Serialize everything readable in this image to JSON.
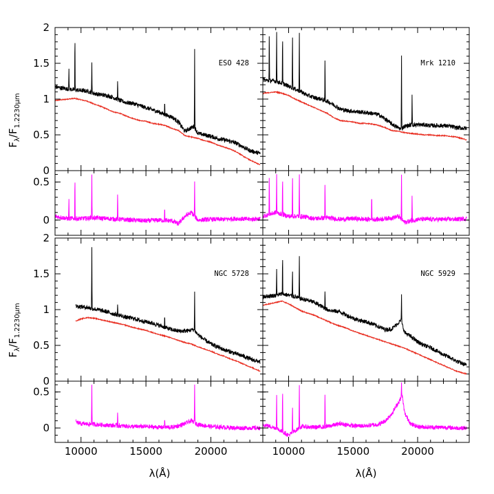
{
  "chart_data": {
    "type": "line",
    "layout": "2x2 galaxies; each galaxy has a spectrum panel and a residual panel below",
    "x_label": "λ(Å)",
    "y_label_main": "F_λ/F_1.2230μm",
    "y_label_main_parts": {
      "base": "F",
      "sub1": "λ",
      "slash": "/F",
      "sub2": "1.2230μm"
    },
    "x_range": [
      8000,
      24000
    ],
    "x_ticks": [
      10000,
      15000,
      20000
    ],
    "x_tick_labels": [
      "10000",
      "15000",
      "20000"
    ],
    "y_range_main": [
      0,
      2
    ],
    "y_ticks_main": [
      0,
      0.5,
      1,
      1.5,
      2
    ],
    "y_tick_labels_main": [
      "0",
      "0.5",
      "1",
      "1.5",
      "2"
    ],
    "y_range_residual": [
      -0.2,
      0.65
    ],
    "y_ticks_residual": [
      0,
      0.5
    ],
    "y_tick_labels_residual": [
      "0",
      "0.5"
    ],
    "colors": {
      "observed": "#000000",
      "model": "#e8291c",
      "residual": "#ff00ff"
    },
    "panels": [
      {
        "name": "ESO 428",
        "observed": {
          "x": [
            8000,
            9000,
            9500,
            10000,
            10500,
            11000,
            11500,
            12000,
            12500,
            13000,
            13500,
            14000,
            14500,
            15000,
            15500,
            16000,
            16500,
            17000,
            17500,
            18000,
            18700,
            19000,
            19500,
            20000,
            20500,
            21000,
            21500,
            22000,
            22500,
            23000,
            23800
          ],
          "y": [
            1.17,
            1.14,
            1.13,
            1.12,
            1.11,
            1.08,
            1.06,
            1.05,
            1.02,
            0.98,
            0.95,
            0.94,
            0.91,
            0.88,
            0.85,
            0.82,
            0.78,
            0.75,
            0.68,
            0.55,
            0.62,
            0.52,
            0.5,
            0.48,
            0.45,
            0.43,
            0.41,
            0.38,
            0.33,
            0.28,
            0.24
          ]
        },
        "model": {
          "x": [
            8000,
            9000,
            9500,
            10000,
            10500,
            11000,
            11500,
            12000,
            12500,
            13000,
            13500,
            14000,
            14500,
            15000,
            15500,
            16000,
            16500,
            17000,
            17500,
            18000,
            18500,
            19000,
            19500,
            20000,
            20500,
            21000,
            21500,
            22000,
            22500,
            23000,
            23800
          ],
          "y": [
            0.98,
            1.0,
            1.01,
            0.99,
            0.97,
            0.93,
            0.9,
            0.86,
            0.82,
            0.8,
            0.76,
            0.73,
            0.7,
            0.69,
            0.66,
            0.65,
            0.63,
            0.59,
            0.56,
            0.49,
            0.47,
            0.45,
            0.42,
            0.4,
            0.36,
            0.33,
            0.3,
            0.26,
            0.2,
            0.15,
            0.08
          ]
        },
        "emission_lines": [
          {
            "x": 9530,
            "peak": 2.0
          },
          {
            "x": 9070,
            "peak": 1.45
          },
          {
            "x": 10830,
            "peak": 1.55
          },
          {
            "x": 12820,
            "peak": 1.3
          },
          {
            "x": 16440,
            "peak": 1.0
          },
          {
            "x": 18750,
            "peak": 1.8
          }
        ],
        "residual": {
          "x": [
            8000,
            9000,
            10000,
            11000,
            12000,
            13000,
            14000,
            15000,
            16000,
            17000,
            17500,
            18000,
            18500,
            19000,
            20000,
            21000,
            22000,
            23000,
            23800
          ],
          "y": [
            0.05,
            0.02,
            0.02,
            0.03,
            0.02,
            0.01,
            0.0,
            -0.01,
            0.0,
            -0.01,
            -0.05,
            0.05,
            0.1,
            0.0,
            0.01,
            0.01,
            0.02,
            0.01,
            0.02
          ]
        },
        "residual_lines": [
          {
            "x": 9530,
            "peak": 0.65
          },
          {
            "x": 10830,
            "peak": 0.65
          },
          {
            "x": 9070,
            "peak": 0.3
          },
          {
            "x": 12820,
            "peak": 0.4
          },
          {
            "x": 16440,
            "peak": 0.2
          },
          {
            "x": 18750,
            "peak": 0.55
          }
        ]
      },
      {
        "name": "Mrk 1210",
        "observed": {
          "x": [
            8000,
            9000,
            9500,
            10000,
            10500,
            11000,
            11500,
            12000,
            12500,
            13000,
            13500,
            14000,
            14500,
            15000,
            15500,
            16000,
            16500,
            17000,
            17500,
            18000,
            18700,
            19000,
            19500,
            20000,
            20500,
            21000,
            21500,
            22000,
            22500,
            23000,
            23800
          ],
          "y": [
            1.27,
            1.25,
            1.22,
            1.18,
            1.14,
            1.1,
            1.05,
            1.02,
            1.0,
            0.97,
            0.92,
            0.86,
            0.84,
            0.83,
            0.82,
            0.81,
            0.8,
            0.78,
            0.72,
            0.65,
            0.58,
            0.62,
            0.64,
            0.64,
            0.64,
            0.63,
            0.63,
            0.63,
            0.62,
            0.6,
            0.59
          ]
        },
        "model": {
          "x": [
            8000,
            9000,
            9500,
            10000,
            10500,
            11000,
            11500,
            12000,
            12500,
            13000,
            13500,
            14000,
            14500,
            15000,
            15500,
            16000,
            16500,
            17000,
            17500,
            18000,
            18500,
            19000,
            19500,
            20000,
            20500,
            21000,
            21500,
            22000,
            22500,
            23000,
            23800
          ],
          "y": [
            1.08,
            1.1,
            1.08,
            1.05,
            1.0,
            0.96,
            0.92,
            0.88,
            0.84,
            0.8,
            0.74,
            0.7,
            0.69,
            0.68,
            0.66,
            0.66,
            0.65,
            0.63,
            0.6,
            0.56,
            0.55,
            0.53,
            0.52,
            0.51,
            0.5,
            0.5,
            0.49,
            0.49,
            0.48,
            0.47,
            0.43
          ]
        },
        "emission_lines": [
          {
            "x": 8500,
            "peak": 2.0
          },
          {
            "x": 9070,
            "peak": 2.0
          },
          {
            "x": 9530,
            "peak": 2.0
          },
          {
            "x": 10300,
            "peak": 2.0
          },
          {
            "x": 10830,
            "peak": 2.0
          },
          {
            "x": 12820,
            "peak": 1.65
          },
          {
            "x": 18750,
            "peak": 1.7
          },
          {
            "x": 19570,
            "peak": 1.1
          }
        ],
        "residual": {
          "x": [
            8000,
            9000,
            10000,
            11000,
            12000,
            13000,
            14000,
            15000,
            16000,
            17000,
            18000,
            18500,
            19000,
            20000,
            21000,
            22000,
            23000,
            23800
          ],
          "y": [
            0.05,
            0.1,
            0.05,
            0.05,
            0.02,
            0.03,
            0.01,
            0.02,
            0.01,
            0.01,
            0.03,
            0.05,
            -0.03,
            0.01,
            0.01,
            0.01,
            0.01,
            0.02
          ]
        },
        "residual_lines": [
          {
            "x": 8500,
            "peak": 0.65
          },
          {
            "x": 9070,
            "peak": 0.65
          },
          {
            "x": 9530,
            "peak": 0.65
          },
          {
            "x": 10300,
            "peak": 0.65
          },
          {
            "x": 10830,
            "peak": 0.65
          },
          {
            "x": 12820,
            "peak": 0.55
          },
          {
            "x": 16440,
            "peak": 0.4
          },
          {
            "x": 18750,
            "peak": 0.65
          },
          {
            "x": 19570,
            "peak": 0.35
          }
        ]
      },
      {
        "name": "NGC 5728",
        "observed": {
          "x": [
            9600,
            10000,
            10500,
            11000,
            11500,
            12000,
            12500,
            13000,
            13500,
            14000,
            14500,
            15000,
            15500,
            16000,
            16500,
            17000,
            17500,
            18000,
            18700,
            19000,
            19500,
            20000,
            20500,
            21000,
            21500,
            22000,
            22500,
            23000,
            23800
          ],
          "y": [
            1.05,
            1.04,
            1.03,
            1.01,
            0.99,
            0.97,
            0.94,
            0.92,
            0.89,
            0.88,
            0.85,
            0.83,
            0.81,
            0.78,
            0.75,
            0.72,
            0.7,
            0.7,
            0.72,
            0.65,
            0.58,
            0.52,
            0.48,
            0.44,
            0.41,
            0.38,
            0.35,
            0.31,
            0.27
          ]
        },
        "model": {
          "x": [
            9600,
            10000,
            10500,
            11000,
            11500,
            12000,
            12500,
            13000,
            13500,
            14000,
            14500,
            15000,
            15500,
            16000,
            16500,
            17000,
            17500,
            18000,
            18500,
            19000,
            19500,
            20000,
            20500,
            21000,
            21500,
            22000,
            22500,
            23000,
            23800
          ],
          "y": [
            0.84,
            0.87,
            0.89,
            0.88,
            0.86,
            0.84,
            0.82,
            0.8,
            0.78,
            0.75,
            0.73,
            0.71,
            0.68,
            0.65,
            0.63,
            0.6,
            0.57,
            0.54,
            0.52,
            0.48,
            0.45,
            0.42,
            0.38,
            0.35,
            0.31,
            0.28,
            0.24,
            0.2,
            0.14
          ]
        },
        "emission_lines": [
          {
            "x": 9530,
            "peak": 2.0
          },
          {
            "x": 10830,
            "peak": 1.95
          },
          {
            "x": 12820,
            "peak": 1.1
          },
          {
            "x": 16440,
            "peak": 0.95
          },
          {
            "x": 18750,
            "peak": 1.3
          }
        ],
        "residual": {
          "x": [
            9600,
            10000,
            11000,
            12000,
            13000,
            14000,
            15000,
            16000,
            17000,
            17500,
            18000,
            18500,
            19000,
            20000,
            21000,
            22000,
            23000,
            23800
          ],
          "y": [
            0.08,
            0.06,
            0.05,
            0.04,
            0.03,
            0.02,
            0.02,
            0.01,
            0.01,
            0.03,
            0.06,
            0.1,
            0.05,
            0.02,
            0.01,
            0.0,
            0.0,
            0.0
          ]
        },
        "residual_lines": [
          {
            "x": 9530,
            "peak": 0.65
          },
          {
            "x": 10830,
            "peak": 0.65
          },
          {
            "x": 12820,
            "peak": 0.25
          },
          {
            "x": 16440,
            "peak": 0.15
          },
          {
            "x": 18750,
            "peak": 0.65
          }
        ]
      },
      {
        "name": "NGC 5929",
        "observed": {
          "x": [
            8000,
            9000,
            9500,
            10000,
            10500,
            11000,
            11500,
            12000,
            12500,
            13000,
            13500,
            14000,
            14500,
            15000,
            15500,
            16000,
            16500,
            17000,
            17500,
            18000,
            18700,
            19000,
            19500,
            20000,
            20500,
            21000,
            21500,
            22000,
            22500,
            23000,
            23800
          ],
          "y": [
            1.18,
            1.2,
            1.22,
            1.2,
            1.18,
            1.15,
            1.13,
            1.1,
            1.05,
            1.0,
            0.98,
            0.97,
            0.92,
            0.88,
            0.85,
            0.83,
            0.8,
            0.76,
            0.72,
            0.73,
            0.85,
            0.68,
            0.62,
            0.55,
            0.5,
            0.47,
            0.42,
            0.37,
            0.33,
            0.28,
            0.22
          ]
        },
        "model": {
          "x": [
            8000,
            9000,
            9500,
            10000,
            10500,
            11000,
            11500,
            12000,
            12500,
            13000,
            13500,
            14000,
            14500,
            15000,
            15500,
            16000,
            16500,
            17000,
            17500,
            18000,
            18500,
            19000,
            19500,
            20000,
            20500,
            21000,
            21500,
            22000,
            22500,
            23000,
            23800
          ],
          "y": [
            1.06,
            1.1,
            1.12,
            1.08,
            1.03,
            0.98,
            0.95,
            0.92,
            0.88,
            0.84,
            0.8,
            0.77,
            0.74,
            0.7,
            0.67,
            0.64,
            0.61,
            0.58,
            0.55,
            0.52,
            0.49,
            0.46,
            0.42,
            0.38,
            0.34,
            0.3,
            0.26,
            0.22,
            0.18,
            0.14,
            0.1
          ]
        },
        "emission_lines": [
          {
            "x": 9070,
            "peak": 1.6
          },
          {
            "x": 9530,
            "peak": 1.85
          },
          {
            "x": 10300,
            "peak": 1.6
          },
          {
            "x": 10830,
            "peak": 1.8
          },
          {
            "x": 12820,
            "peak": 1.3
          },
          {
            "x": 18750,
            "peak": 1.25
          }
        ],
        "residual": {
          "x": [
            8000,
            9000,
            10000,
            11000,
            12000,
            13000,
            14000,
            15000,
            16000,
            17000,
            17500,
            18000,
            18500,
            18800,
            19000,
            19500,
            20000,
            21000,
            22000,
            23000,
            23800
          ],
          "y": [
            0.05,
            0.0,
            -0.1,
            0.02,
            0.01,
            0.02,
            0.06,
            0.03,
            0.03,
            0.05,
            0.1,
            0.2,
            0.35,
            0.45,
            0.2,
            0.05,
            0.02,
            0.01,
            0.01,
            0.0,
            0.0
          ]
        },
        "residual_lines": [
          {
            "x": 9070,
            "peak": 0.5
          },
          {
            "x": 9530,
            "peak": 0.65
          },
          {
            "x": 10300,
            "peak": 0.35
          },
          {
            "x": 10830,
            "peak": 0.65
          },
          {
            "x": 12820,
            "peak": 0.55
          },
          {
            "x": 18750,
            "peak": 0.65
          }
        ]
      }
    ]
  }
}
